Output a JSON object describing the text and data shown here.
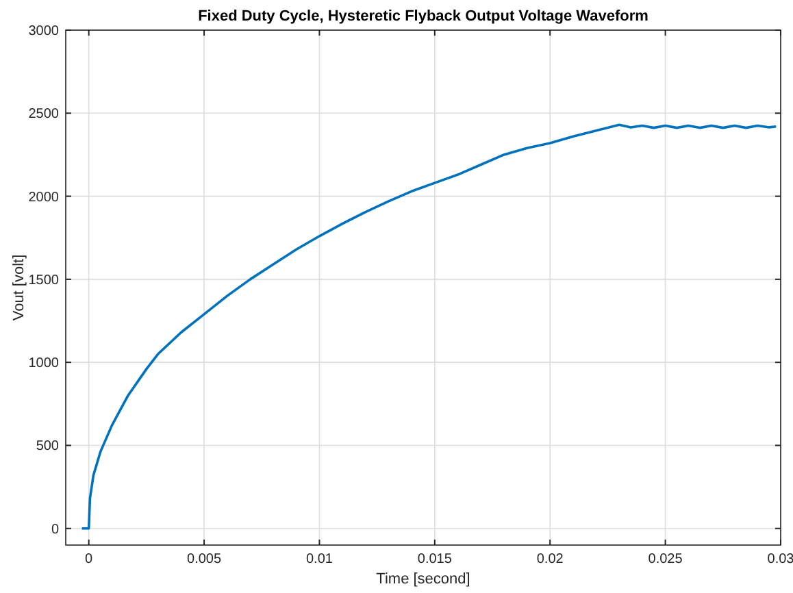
{
  "chart_data": {
    "type": "line",
    "title": "Fixed Duty Cycle, Hysteretic Flyback Output Voltage Waveform",
    "xlabel": "Time [second]",
    "ylabel": "Vout [volt]",
    "x": [
      -0.0003,
      0,
      5e-05,
      0.0002,
      0.0005,
      0.001,
      0.0017,
      0.0025,
      0.003,
      0.004,
      0.005,
      0.006,
      0.007,
      0.008,
      0.009,
      0.01,
      0.011,
      0.012,
      0.013,
      0.014,
      0.015,
      0.016,
      0.017,
      0.018,
      0.019,
      0.02,
      0.021,
      0.022,
      0.023,
      0.0235,
      0.024,
      0.0245,
      0.025,
      0.0255,
      0.026,
      0.0265,
      0.027,
      0.0275,
      0.028,
      0.0285,
      0.029,
      0.0295,
      0.0298
    ],
    "series": [
      {
        "color": "#0072bd",
        "values": [
          0,
          0,
          180,
          320,
          460,
          620,
          800,
          960,
          1050,
          1180,
          1290,
          1400,
          1500,
          1590,
          1680,
          1760,
          1835,
          1905,
          1970,
          2030,
          2080,
          2130,
          2190,
          2250,
          2290,
          2320,
          2360,
          2395,
          2430,
          2415,
          2425,
          2412,
          2425,
          2412,
          2425,
          2412,
          2425,
          2412,
          2425,
          2412,
          2425,
          2415,
          2420
        ]
      }
    ],
    "xlim": [
      -0.001,
      0.03
    ],
    "ylim": [
      -100,
      3000
    ],
    "xticks": [
      0,
      0.005,
      0.01,
      0.015,
      0.02,
      0.025,
      0.03
    ],
    "yticks": [
      0,
      500,
      1000,
      1500,
      2000,
      2500,
      3000
    ],
    "grid": true,
    "line_style": "solid",
    "marker": "none"
  }
}
